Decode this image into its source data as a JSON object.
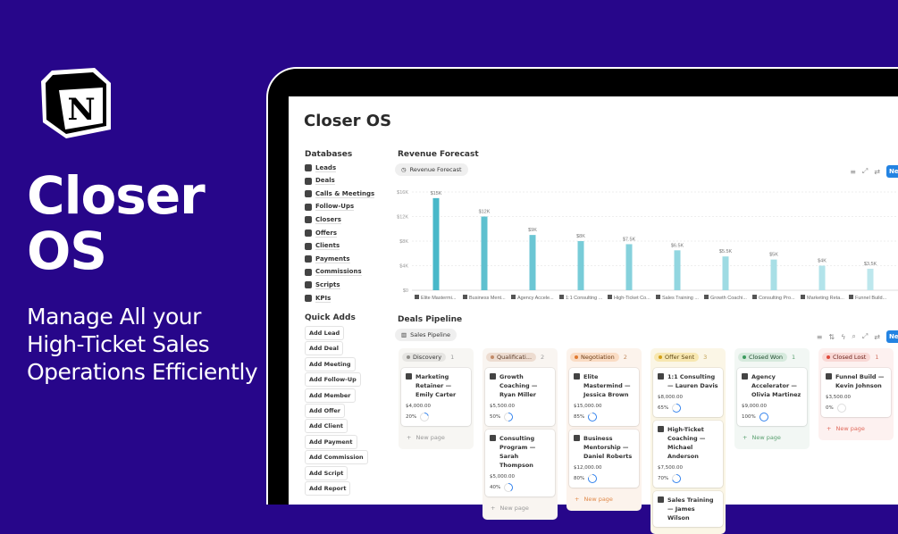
{
  "hero": {
    "title_line1": "Closer",
    "title_line2": "OS",
    "subtitle_lines": [
      "Manage All your",
      "High-Ticket Sales",
      "Operations Efficiently"
    ],
    "logo_letter": "N"
  },
  "app": {
    "title": "Closer OS"
  },
  "databases": {
    "heading": "Databases",
    "items": [
      {
        "label": "Leads",
        "icon": "leads-icon"
      },
      {
        "label": "Deals",
        "icon": "deals-icon"
      },
      {
        "label": "Calls & Meetings",
        "icon": "phone-icon"
      },
      {
        "label": "Follow-Ups",
        "icon": "repeat-icon"
      },
      {
        "label": "Closers",
        "icon": "user-circle-icon"
      },
      {
        "label": "Offers",
        "icon": "tag-icon"
      },
      {
        "label": "Clients",
        "icon": "people-icon"
      },
      {
        "label": "Payments",
        "icon": "cash-icon"
      },
      {
        "label": "Commissions",
        "icon": "commission-icon"
      },
      {
        "label": "Scripts",
        "icon": "scripts-icon"
      },
      {
        "label": "KPIs",
        "icon": "kpi-icon"
      }
    ]
  },
  "quick_adds": {
    "heading": "Quick Adds",
    "buttons": [
      "Add Lead",
      "Add Deal",
      "Add Meeting",
      "Add Follow-Up",
      "Add Member",
      "Add Offer",
      "Add Client",
      "Add Payment",
      "Add Commission",
      "Add Script",
      "Add Report"
    ]
  },
  "revenue": {
    "heading": "Revenue Forecast",
    "view_label": "Revenue Forecast",
    "new_label": "New"
  },
  "chart_data": {
    "type": "bar",
    "title": "Revenue Forecast",
    "categories": [
      "Elite Mastermi...",
      "Business Ment...",
      "Agency Accele...",
      "1:1 Consulting ...",
      "High-Ticket Co...",
      "Sales Training ...",
      "Growth Coachi...",
      "Consulting Pro...",
      "Marketing Reta...",
      "Funnel Build..."
    ],
    "values": [
      15000,
      12000,
      9000,
      8000,
      7500,
      6500,
      5500,
      5000,
      4000,
      3500
    ],
    "data_labels": [
      "$15K",
      "$12K",
      "$9K",
      "$8K",
      "$7.5K",
      "$6.5K",
      "$5.5K",
      "$5K",
      "$4K",
      "$3.5K"
    ],
    "yticks": [
      "$0",
      "$4K",
      "$8K",
      "$12K",
      "$16K"
    ],
    "ylim": [
      0,
      16000
    ],
    "grid": true,
    "colors": [
      "#48b8c9",
      "#5ec0cf",
      "#6bc6d4",
      "#78ccd8",
      "#86d1dc",
      "#92d6e0",
      "#9edbe3",
      "#a8dfe6",
      "#b2e3ea",
      "#bde7ed"
    ]
  },
  "pipeline": {
    "heading": "Deals Pipeline",
    "view_label": "Sales Pipeline",
    "new_label": "New",
    "new_page": "New page",
    "columns": [
      {
        "name": "Discovery",
        "count": "1",
        "bg": "#f7f6f3",
        "tag": "#e6e5e2",
        "dot": "#8f8e8a",
        "text": "#333",
        "count_color": "#999",
        "np": "#999",
        "cards": [
          {
            "title": "Marketing Retainer — Emily Carter",
            "amount": "$4,000.00",
            "pct": "20%",
            "p": 20
          }
        ]
      },
      {
        "name": "Qualificati...",
        "count": "2",
        "bg": "#f9f5f1",
        "tag": "#eddcd0",
        "dot": "#c28b68",
        "text": "#5a3a26",
        "count_color": "#999",
        "np": "#999",
        "cards": [
          {
            "title": "Growth Coaching — Ryan Miller",
            "amount": "$5,500.00",
            "pct": "50%",
            "p": 50
          },
          {
            "title": "Consulting Program — Sarah Thompson",
            "amount": "$5,000.00",
            "pct": "40%",
            "p": 40
          }
        ]
      },
      {
        "name": "Negotiation",
        "count": "2",
        "bg": "#fcf3ec",
        "tag": "#fadcc4",
        "dot": "#e07a30",
        "text": "#6b3a12",
        "count_color": "#c08a60",
        "np": "#e08a4a",
        "cards": [
          {
            "title": "Elite Mastermind — Jessica Brown",
            "amount": "$15,000.00",
            "pct": "85%",
            "p": 85
          },
          {
            "title": "Business Mentorship — Daniel Roberts",
            "amount": "$12,000.00",
            "pct": "80%",
            "p": 80
          }
        ]
      },
      {
        "name": "Offer Sent",
        "count": "3",
        "bg": "#fbf6e6",
        "tag": "#f7e7b0",
        "dot": "#d4a017",
        "text": "#5d4510",
        "count_color": "#c0a050",
        "np": "#c0a050",
        "cards": [
          {
            "title": "1:1 Consulting — Lauren Davis",
            "amount": "$8,000.00",
            "pct": "65%",
            "p": 65
          },
          {
            "title": "High-Ticket Coaching — Michael Anderson",
            "amount": "$7,500.00",
            "pct": "70%",
            "p": 70
          },
          {
            "title": "Sales Training — James Wilson",
            "amount": "",
            "pct": "",
            "p": null
          }
        ]
      },
      {
        "name": "Closed Won",
        "count": "1",
        "bg": "#f2f7f4",
        "tag": "#d6eadd",
        "dot": "#3b9a5e",
        "text": "#1f4d2f",
        "count_color": "#5aa070",
        "np": "#5aa070",
        "cards": [
          {
            "title": "Agency Accelerator — Olivia Martinez",
            "amount": "$9,000.00",
            "pct": "100%",
            "p": 100
          }
        ]
      },
      {
        "name": "Closed Lost",
        "count": "1",
        "bg": "#fdf1f0",
        "tag": "#f9d8d5",
        "dot": "#e04a3c",
        "text": "#6b2019",
        "count_color": "#d07060",
        "np": "#e06a5c",
        "cards": [
          {
            "title": "Funnel Build — Kevin Johnson",
            "amount": "$3,500.00",
            "pct": "0%",
            "p": 0
          }
        ]
      }
    ]
  }
}
